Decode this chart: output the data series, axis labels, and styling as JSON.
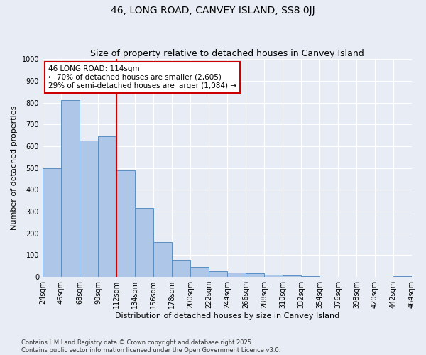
{
  "title": "46, LONG ROAD, CANVEY ISLAND, SS8 0JJ",
  "subtitle": "Size of property relative to detached houses in Canvey Island",
  "xlabel": "Distribution of detached houses by size in Canvey Island",
  "ylabel": "Number of detached properties",
  "bar_values": [
    500,
    810,
    625,
    645,
    490,
    315,
    160,
    80,
    45,
    25,
    20,
    15,
    10,
    8,
    5,
    0,
    0,
    0,
    0,
    5
  ],
  "bin_labels": [
    "24sqm",
    "46sqm",
    "68sqm",
    "90sqm",
    "112sqm",
    "134sqm",
    "156sqm",
    "178sqm",
    "200sqm",
    "222sqm",
    "244sqm",
    "266sqm",
    "288sqm",
    "310sqm",
    "332sqm",
    "354sqm",
    "376sqm",
    "398sqm",
    "420sqm",
    "442sqm",
    "464sqm"
  ],
  "bar_color": "#aec6e8",
  "bar_edge_color": "#5a8fc2",
  "background_color": "#e8edf5",
  "grid_color": "#ffffff",
  "annotation_line1": "46 LONG ROAD: 114sqm",
  "annotation_line2": "← 70% of detached houses are smaller (2,605)",
  "annotation_line3": "29% of semi-detached houses are larger (1,084) →",
  "annotation_box_color": "#ffffff",
  "annotation_box_edge": "#cc0000",
  "vline_color": "#cc0000",
  "ylim": [
    0,
    1000
  ],
  "yticks": [
    0,
    100,
    200,
    300,
    400,
    500,
    600,
    700,
    800,
    900,
    1000
  ],
  "footer_text": "Contains HM Land Registry data © Crown copyright and database right 2025.\nContains public sector information licensed under the Open Government Licence v3.0.",
  "title_fontsize": 10,
  "subtitle_fontsize": 9,
  "axis_label_fontsize": 8,
  "tick_fontsize": 7,
  "annotation_fontsize": 7.5,
  "footer_fontsize": 6
}
